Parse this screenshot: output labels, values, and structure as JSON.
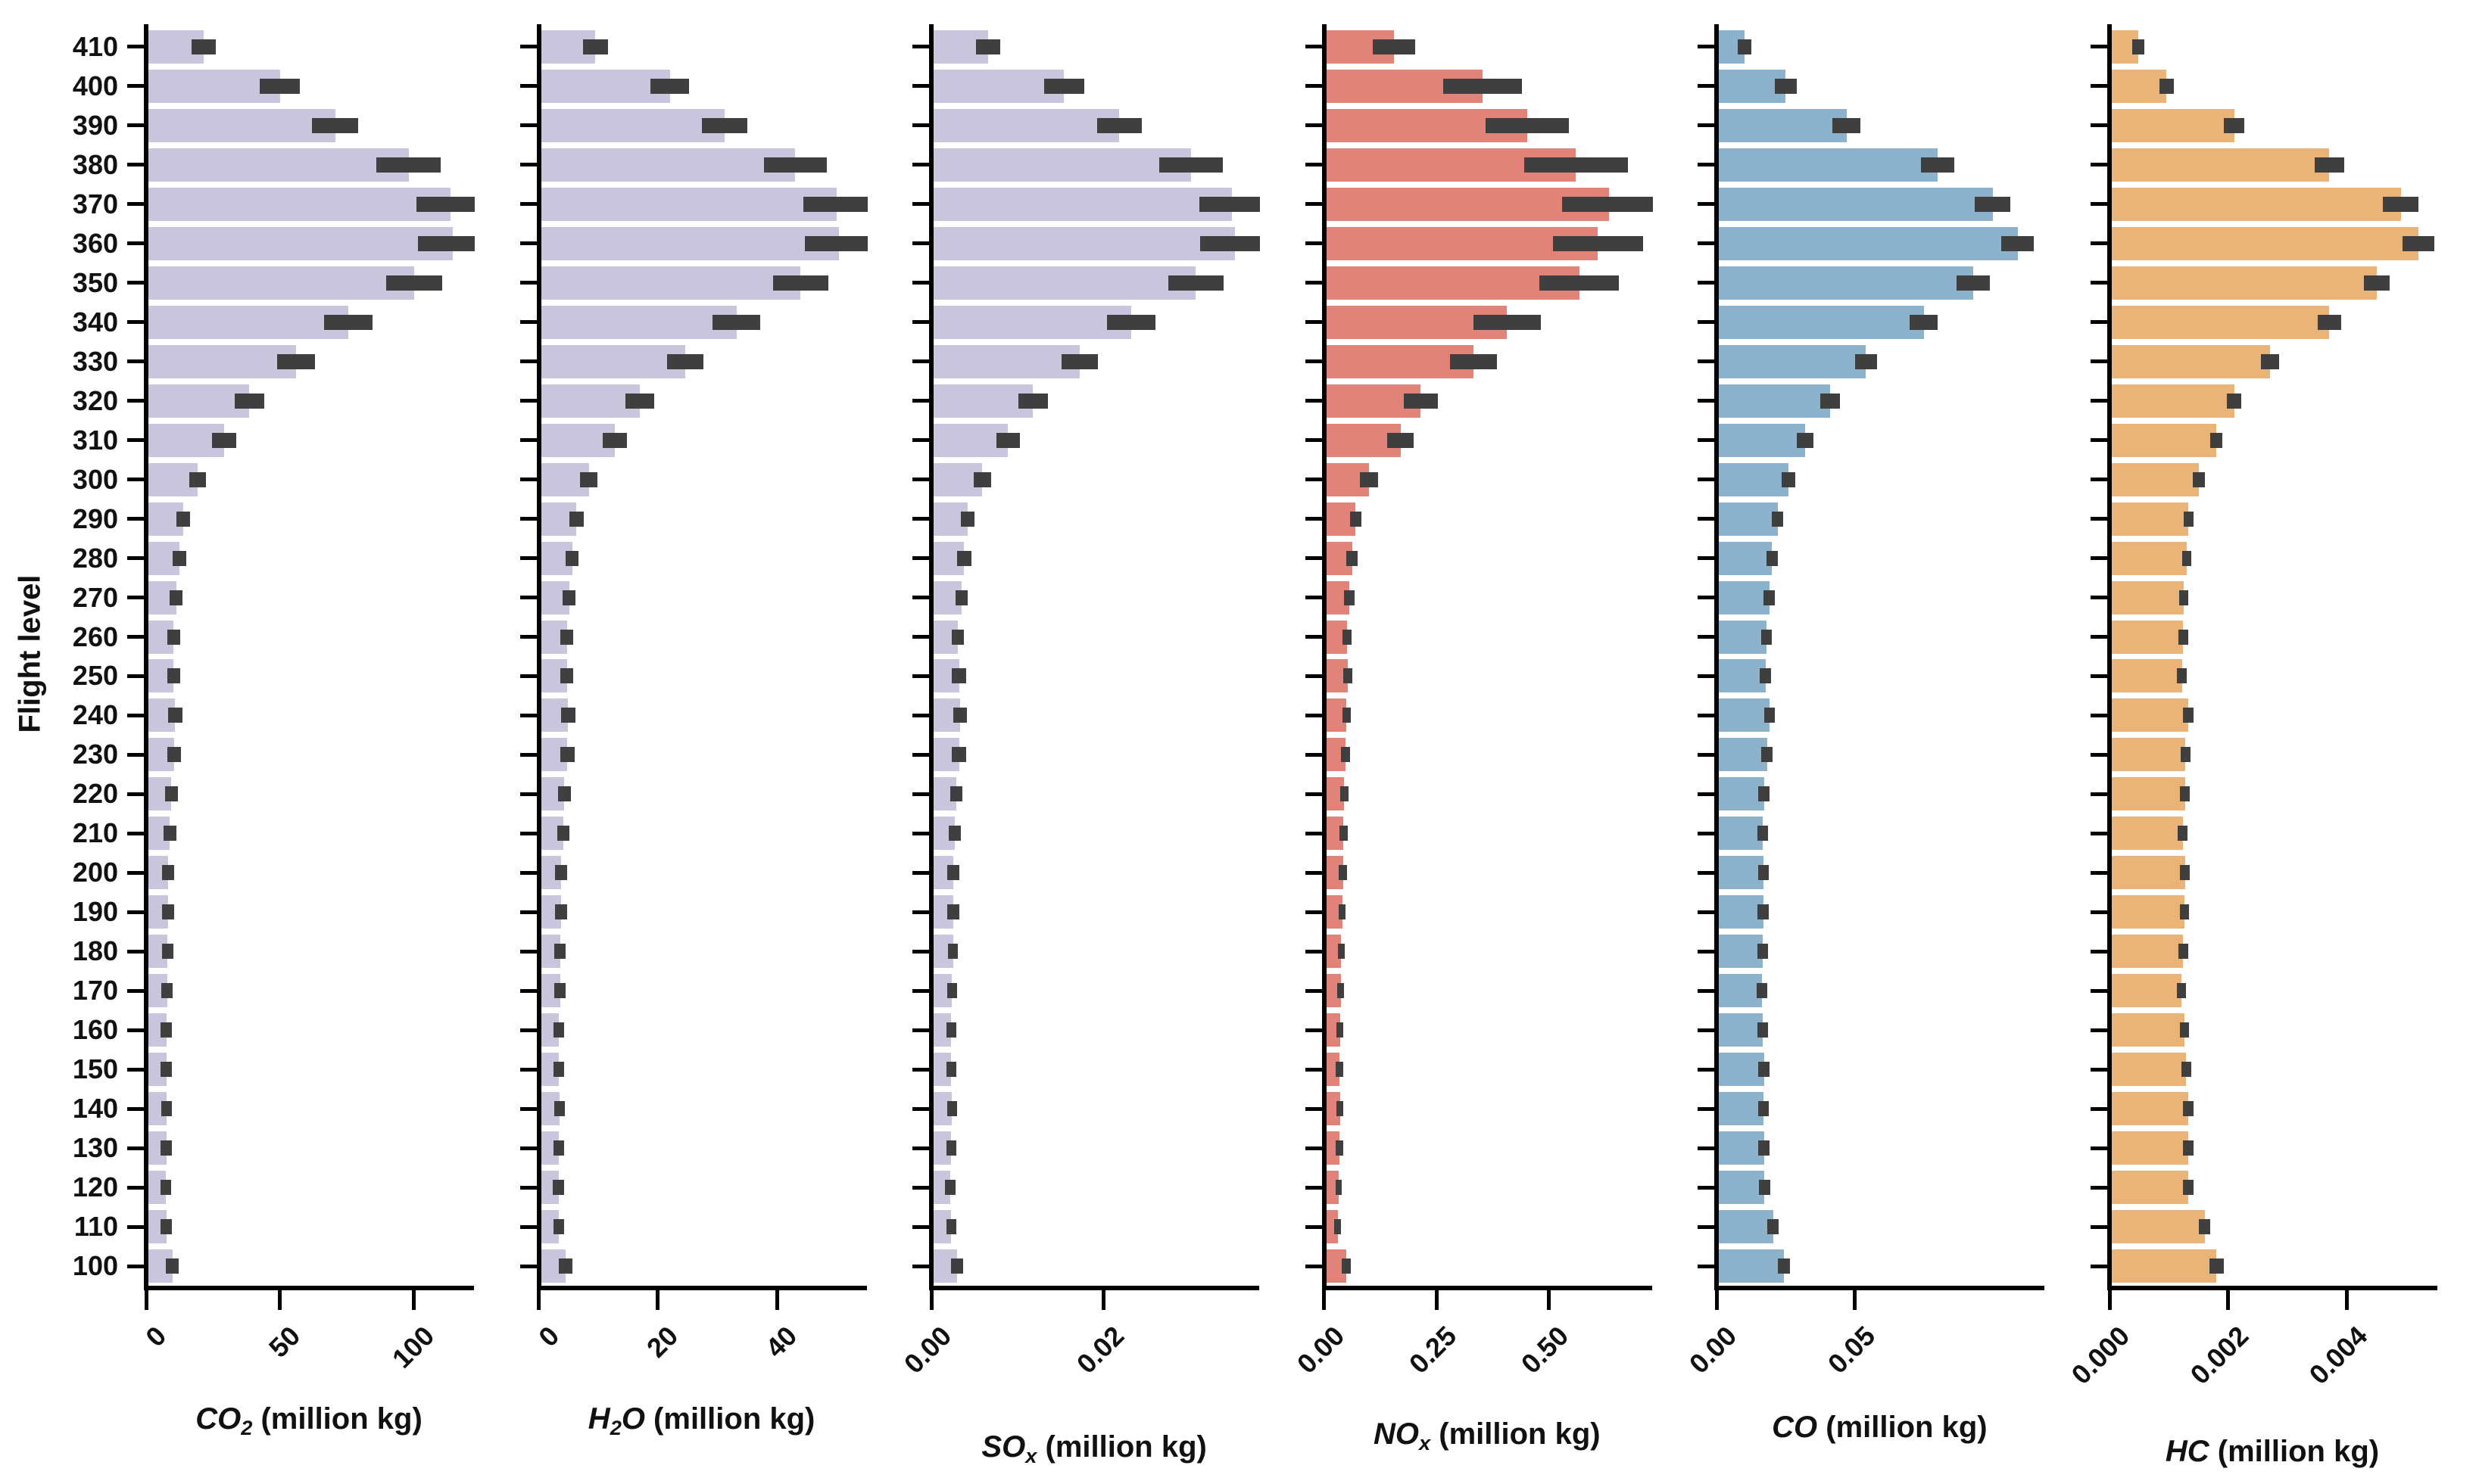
{
  "figure": {
    "background": "#ffffff",
    "error_bar_color": "#3f3f3f",
    "axis_color": "#000000"
  },
  "chart_data": {
    "type": "bar",
    "orientation": "horizontal",
    "ylabel": "Flight level",
    "grid": false,
    "legend": "none",
    "categories": [
      410,
      400,
      390,
      380,
      370,
      360,
      350,
      340,
      330,
      320,
      310,
      300,
      290,
      280,
      270,
      260,
      250,
      240,
      230,
      220,
      210,
      200,
      190,
      180,
      170,
      160,
      150,
      140,
      130,
      120,
      110,
      100
    ],
    "series": [
      {
        "name": "CO2",
        "label_text": "CO2 (million kg)",
        "label_segments": [
          {
            "t": "CO",
            "i": 1
          },
          {
            "t": "2",
            "i": 1,
            "s": 1
          },
          {
            "t": " (million kg)"
          }
        ],
        "color": "#c9c5dc",
        "xlim": [
          0,
          121.5
        ],
        "xticks": [
          {
            "v": 0,
            "l": "0"
          },
          {
            "v": 50,
            "l": "50"
          },
          {
            "v": 100,
            "l": "100"
          }
        ],
        "label_y": 1853,
        "values": [
          21.5,
          50,
          70.5,
          98,
          113.5,
          114.5,
          100,
          75.5,
          56,
          38.5,
          29,
          19.2,
          13.8,
          12.4,
          11.3,
          10.2,
          10.3,
          10.8,
          10.5,
          9.4,
          8.9,
          8.2,
          8.2,
          8.0,
          7.8,
          7.5,
          7.5,
          7.7,
          7.5,
          7.3,
          7.5,
          9.8
        ],
        "errors": [
          4.5,
          7.5,
          8.5,
          12,
          12.5,
          13,
          10.5,
          9,
          7,
          5.5,
          4.5,
          3.2,
          2.6,
          2.5,
          2.4,
          2.4,
          2.5,
          2.7,
          2.6,
          2.4,
          2.3,
          2.2,
          2.2,
          2.1,
          2.1,
          2.0,
          2.0,
          2.0,
          2.0,
          2.0,
          2.0,
          2.4
        ]
      },
      {
        "name": "H2O",
        "label_text": "H2O (million kg)",
        "label_segments": [
          {
            "t": "H",
            "i": 1
          },
          {
            "t": "2",
            "i": 1,
            "s": 1
          },
          {
            "t": "O",
            "i": 1
          },
          {
            "t": " (million kg)"
          }
        ],
        "color": "#c9c5dc",
        "xlim": [
          0,
          54.7
        ],
        "xticks": [
          {
            "v": 0,
            "l": "0"
          },
          {
            "v": 20,
            "l": "20"
          },
          {
            "v": 40,
            "l": "40"
          }
        ],
        "label_y": 1853,
        "values": [
          9.5,
          22,
          31.2,
          43.1,
          50,
          50.4,
          44,
          33.2,
          24.6,
          17,
          12.8,
          8.4,
          6.3,
          5.6,
          5.1,
          4.7,
          4.7,
          4.9,
          4.8,
          4.3,
          4.1,
          3.7,
          3.7,
          3.6,
          3.6,
          3.4,
          3.4,
          3.5,
          3.4,
          3.3,
          3.4,
          4.5
        ],
        "errors": [
          2.1,
          3.3,
          3.8,
          5.3,
          5.5,
          5.7,
          4.6,
          4.0,
          3.1,
          2.4,
          2.0,
          1.5,
          1.2,
          1.1,
          1.1,
          1.1,
          1.1,
          1.2,
          1.2,
          1.1,
          1.0,
          1.0,
          1.0,
          0.95,
          0.95,
          0.9,
          0.9,
          0.9,
          0.9,
          0.9,
          0.9,
          1.1
        ]
      },
      {
        "name": "SOx",
        "label_text": "SOx (million kg)",
        "label_segments": [
          {
            "t": "SO",
            "i": 1
          },
          {
            "t": "x",
            "i": 1,
            "s": 1
          },
          {
            "t": " (million kg)"
          }
        ],
        "color": "#c9c5dc",
        "xlim": [
          0,
          0.0378
        ],
        "xticks": [
          {
            "v": 0,
            "l": "0.00"
          },
          {
            "v": 0.02,
            "l": "0.02"
          }
        ],
        "label_y": 1890,
        "values": [
          0.0066,
          0.0154,
          0.0218,
          0.0301,
          0.0349,
          0.0352,
          0.0307,
          0.0232,
          0.0172,
          0.0118,
          0.0089,
          0.0059,
          0.0042,
          0.0038,
          0.0035,
          0.0031,
          0.0032,
          0.0033,
          0.0032,
          0.0029,
          0.0027,
          0.0025,
          0.0025,
          0.0025,
          0.0024,
          0.0023,
          0.0023,
          0.0024,
          0.0023,
          0.0022,
          0.0023,
          0.003
        ],
        "errors": [
          0.0014,
          0.0023,
          0.0026,
          0.0037,
          0.0038,
          0.004,
          0.0032,
          0.0028,
          0.0021,
          0.0017,
          0.0014,
          0.001,
          0.0008,
          0.0008,
          0.0007,
          0.0007,
          0.0008,
          0.0008,
          0.0008,
          0.0007,
          0.0007,
          0.0007,
          0.0007,
          0.0006,
          0.0006,
          0.0006,
          0.0006,
          0.0006,
          0.0006,
          0.0006,
          0.0006,
          0.0007
        ]
      },
      {
        "name": "NOx",
        "label_text": "NOx (million kg)",
        "label_segments": [
          {
            "t": "NO",
            "i": 1
          },
          {
            "t": "x",
            "i": 1,
            "s": 1
          },
          {
            "t": " (million kg)"
          }
        ],
        "color": "#e2837a",
        "xlim": [
          0,
          0.7253
        ],
        "xticks": [
          {
            "v": 0,
            "l": "0.00"
          },
          {
            "v": 0.25,
            "l": "0.25"
          },
          {
            "v": 0.5,
            "l": "0.50"
          }
        ],
        "label_y": 1873,
        "values": [
          0.155,
          0.353,
          0.453,
          0.561,
          0.635,
          0.61,
          0.568,
          0.407,
          0.333,
          0.215,
          0.17,
          0.1,
          0.07,
          0.062,
          0.056,
          0.051,
          0.052,
          0.05,
          0.048,
          0.045,
          0.043,
          0.042,
          0.04,
          0.038,
          0.037,
          0.035,
          0.034,
          0.035,
          0.034,
          0.032,
          0.03,
          0.049
        ],
        "errors": [
          0.047,
          0.088,
          0.093,
          0.115,
          0.105,
          0.1,
          0.088,
          0.075,
          0.052,
          0.038,
          0.03,
          0.02,
          0.013,
          0.012,
          0.011,
          0.01,
          0.01,
          0.01,
          0.01,
          0.009,
          0.009,
          0.009,
          0.008,
          0.008,
          0.008,
          0.008,
          0.008,
          0.008,
          0.008,
          0.007,
          0.007,
          0.01
        ]
      },
      {
        "name": "CO",
        "label_text": "CO (million kg)",
        "label_segments": [
          {
            "t": "CO",
            "i": 1
          },
          {
            "t": " (million kg)"
          }
        ],
        "color": "#8cb2cc",
        "xlim": [
          0,
          0.118
        ],
        "xticks": [
          {
            "v": 0,
            "l": "0.00"
          },
          {
            "v": 0.05,
            "l": "0.05"
          }
        ],
        "label_y": 1864,
        "values": [
          0.01,
          0.025,
          0.047,
          0.08,
          0.1,
          0.109,
          0.093,
          0.075,
          0.054,
          0.041,
          0.032,
          0.026,
          0.022,
          0.02,
          0.019,
          0.018,
          0.0176,
          0.0191,
          0.0182,
          0.0171,
          0.0166,
          0.0169,
          0.0168,
          0.0166,
          0.0163,
          0.0166,
          0.0171,
          0.0169,
          0.0171,
          0.0173,
          0.0204,
          0.0244
        ],
        "errors": [
          0.0025,
          0.004,
          0.005,
          0.006,
          0.0065,
          0.006,
          0.006,
          0.005,
          0.004,
          0.0035,
          0.003,
          0.0025,
          0.002,
          0.002,
          0.002,
          0.002,
          0.002,
          0.002,
          0.002,
          0.002,
          0.002,
          0.002,
          0.002,
          0.002,
          0.002,
          0.002,
          0.002,
          0.002,
          0.002,
          0.002,
          0.002,
          0.0022
        ]
      },
      {
        "name": "HC",
        "label_text": "HC (million kg)",
        "label_segments": [
          {
            "t": "HC",
            "i": 1
          },
          {
            "t": " (million kg)"
          }
        ],
        "color": "#eab377",
        "xlim": [
          0,
          0.005478
        ],
        "xticks": [
          {
            "v": 0,
            "l": "0.000"
          },
          {
            "v": 0.002,
            "l": "0.002"
          },
          {
            "v": 0.004,
            "l": "0.004"
          }
        ],
        "label_y": 1896,
        "values": [
          0.00048,
          0.00096,
          0.0021,
          0.0037,
          0.0049,
          0.0052,
          0.0045,
          0.0037,
          0.0027,
          0.0021,
          0.0018,
          0.0015,
          0.00133,
          0.0013,
          0.00125,
          0.00124,
          0.00122,
          0.00132,
          0.00128,
          0.00127,
          0.00123,
          0.00127,
          0.00126,
          0.00124,
          0.00121,
          0.00126,
          0.00129,
          0.00132,
          0.00132,
          0.00133,
          0.0016,
          0.0018
        ],
        "errors": [
          0.0001,
          0.00012,
          0.00017,
          0.00025,
          0.0003,
          0.00027,
          0.00022,
          0.0002,
          0.00015,
          0.00012,
          0.0001,
          0.0001,
          8e-05,
          8e-05,
          8e-05,
          8e-05,
          8e-05,
          9e-05,
          8e-05,
          8e-05,
          8e-05,
          8e-05,
          8e-05,
          8e-05,
          8e-05,
          8e-05,
          8e-05,
          9e-05,
          9e-05,
          9e-05,
          0.0001,
          0.00012
        ]
      }
    ]
  }
}
